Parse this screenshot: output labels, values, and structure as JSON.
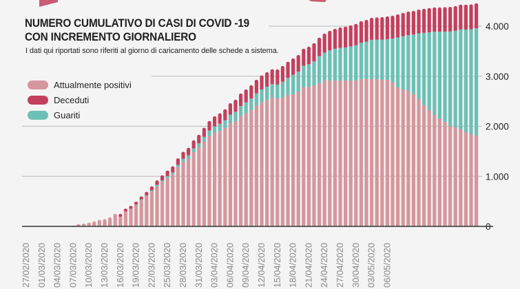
{
  "title_line1": "NUMERO CUMULATIVO DI CASI DI COVID -19",
  "title_line2": "CON INCREMENTO GIORNALIERO",
  "subtitle": "I dati qui riportati sono riferiti al giorno di caricamento delle schede a sistema.",
  "colors": {
    "positivi": "#d4979d",
    "deceduti": "#c2405e",
    "guariti": "#6cc0b5",
    "background": "#f4f4f4",
    "accent": "#c2405e"
  },
  "legend": [
    {
      "key": "positivi",
      "label": "Attualmente positivi"
    },
    {
      "key": "deceduti",
      "label": "Deceduti"
    },
    {
      "key": "guariti",
      "label": "Guariti"
    }
  ],
  "chart_data": {
    "type": "bar",
    "stacked": true,
    "title": "NUMERO CUMULATIVO DI CASI DI COVID -19 CON INCREMENTO GIORNALIERO",
    "ylim": [
      0,
      4500
    ],
    "y_ticks": [
      0,
      1000,
      2000,
      3000,
      4000
    ],
    "y_tick_labels": [
      "0",
      "1.000",
      "2.000",
      "3.000",
      "4.000"
    ],
    "y_axis_position": "right",
    "grid": true,
    "legend_position": "top-left",
    "categories": [
      "27/02/2020",
      "28/02/2020",
      "29/02/2020",
      "01/03/2020",
      "02/03/2020",
      "03/03/2020",
      "04/03/2020",
      "05/03/2020",
      "06/03/2020",
      "07/03/2020",
      "08/03/2020",
      "09/03/2020",
      "10/03/2020",
      "11/03/2020",
      "12/03/2020",
      "13/03/2020",
      "14/03/2020",
      "15/03/2020",
      "16/03/2020",
      "17/03/2020",
      "18/03/2020",
      "19/03/2020",
      "20/03/2020",
      "21/03/2020",
      "22/03/2020",
      "23/03/2020",
      "24/03/2020",
      "25/03/2020",
      "26/03/2020",
      "27/03/2020",
      "28/03/2020",
      "29/03/2020",
      "30/03/2020",
      "31/03/2020",
      "01/04/2020",
      "02/04/2020",
      "03/04/2020",
      "04/04/2020",
      "05/04/2020",
      "06/04/2020",
      "07/04/2020",
      "08/04/2020",
      "09/04/2020",
      "10/04/2020",
      "11/04/2020",
      "12/04/2020",
      "13/04/2020",
      "14/04/2020",
      "15/04/2020",
      "16/04/2020",
      "17/04/2020",
      "18/04/2020",
      "19/04/2020",
      "20/04/2020",
      "21/04/2020",
      "22/04/2020",
      "23/04/2020",
      "24/04/2020",
      "25/04/2020",
      "26/04/2020",
      "27/04/2020",
      "28/04/2020",
      "29/04/2020",
      "30/04/2020",
      "01/05/2020",
      "02/05/2020",
      "03/05/2020",
      "04/05/2020",
      "05/05/2020",
      "06/05/2020",
      "07/05/2020",
      "08/05/2020",
      "09/05/2020",
      "10/05/2020",
      "11/05/2020",
      "12/05/2020",
      "13/05/2020",
      "14/05/2020",
      "15/05/2020",
      "16/05/2020",
      "17/05/2020",
      "18/05/2020",
      "19/05/2020",
      "20/05/2020",
      "21/05/2020",
      "22/05/2020",
      "23/05/2020"
    ],
    "x_tick_labels": [
      "27/02/2020",
      "01/03/2020",
      "04/03/2020",
      "07/03/2020",
      "10/03/2020",
      "13/03/2020",
      "16/03/2020",
      "19/03/2020",
      "22/03/2020",
      "25/03/2020",
      "28/03/2020",
      "31/03/2020",
      "03/04/2020",
      "06/04/2020",
      "09/04/2020",
      "12/04/2020",
      "15/04/2020",
      "18/04/2020",
      "21/04/2020",
      "24/04/2020",
      "27/04/2020",
      "30/04/2020",
      "03/05/2020",
      "06/05/2020"
    ],
    "series": [
      {
        "name": "Attualmente positivi",
        "key": "positivi",
        "values": [
          0,
          0,
          0,
          0,
          0,
          0,
          0,
          0,
          5,
          10,
          30,
          35,
          50,
          70,
          100,
          115,
          150,
          220,
          212,
          310,
          352,
          430,
          528,
          605,
          700,
          805,
          890,
          970,
          1040,
          1185,
          1295,
          1355,
          1485,
          1575,
          1695,
          1805,
          1875,
          1910,
          1965,
          2060,
          2105,
          2205,
          2262,
          2324,
          2411,
          2478,
          2525,
          2572,
          2557,
          2570,
          2625,
          2639,
          2694,
          2777,
          2790,
          2818,
          2859,
          2914,
          2914,
          2914,
          2914,
          2914,
          2914,
          2914,
          2942,
          2942,
          2942,
          2942,
          2928,
          2928,
          2873,
          2777,
          2735,
          2708,
          2639,
          2543,
          2419,
          2323,
          2227,
          2158,
          2089,
          2007,
          1979,
          1938,
          1883,
          1842,
          1814
        ]
      },
      {
        "name": "Guariti",
        "key": "guariti",
        "values": [
          0,
          0,
          0,
          0,
          0,
          0,
          0,
          0,
          0,
          0,
          0,
          0,
          0,
          0,
          0,
          0,
          0,
          0,
          3,
          5,
          8,
          10,
          12,
          15,
          20,
          25,
          30,
          35,
          40,
          45,
          55,
          65,
          75,
          85,
          95,
          110,
          125,
          140,
          155,
          170,
          185,
          200,
          215,
          230,
          245,
          255,
          265,
          270,
          275,
          323,
          343,
          389,
          396,
          430,
          450,
          481,
          540,
          557,
          602,
          634,
          651,
          661,
          682,
          705,
          727,
          749,
          785,
          788,
          803,
          812,
          878,
          997,
          1064,
          1113,
          1193,
          1313,
          1448,
          1555,
          1662,
          1729,
          1802,
          1887,
          1929,
          1996,
          2050,
          2096,
          2144
        ]
      },
      {
        "name": "Deceduti",
        "key": "deceduti",
        "values": [
          0,
          0,
          0,
          0,
          0,
          0,
          0,
          0,
          0,
          0,
          0,
          0,
          0,
          0,
          0,
          0,
          0,
          0,
          5,
          10,
          20,
          25,
          30,
          40,
          50,
          60,
          70,
          80,
          90,
          100,
          110,
          120,
          130,
          140,
          150,
          160,
          170,
          180,
          190,
          200,
          210,
          220,
          228,
          236,
          244,
          252,
          260,
          268,
          275,
          282,
          290,
          298,
          305,
          312,
          320,
          330,
          340,
          350,
          360,
          370,
          380,
          385,
          390,
          395,
          400,
          405,
          410,
          415,
          420,
          425,
          428,
          432,
          435,
          440,
          443,
          446,
          449,
          452,
          455,
          457,
          459,
          461,
          463,
          465,
          466,
          467,
          468
        ]
      }
    ]
  }
}
